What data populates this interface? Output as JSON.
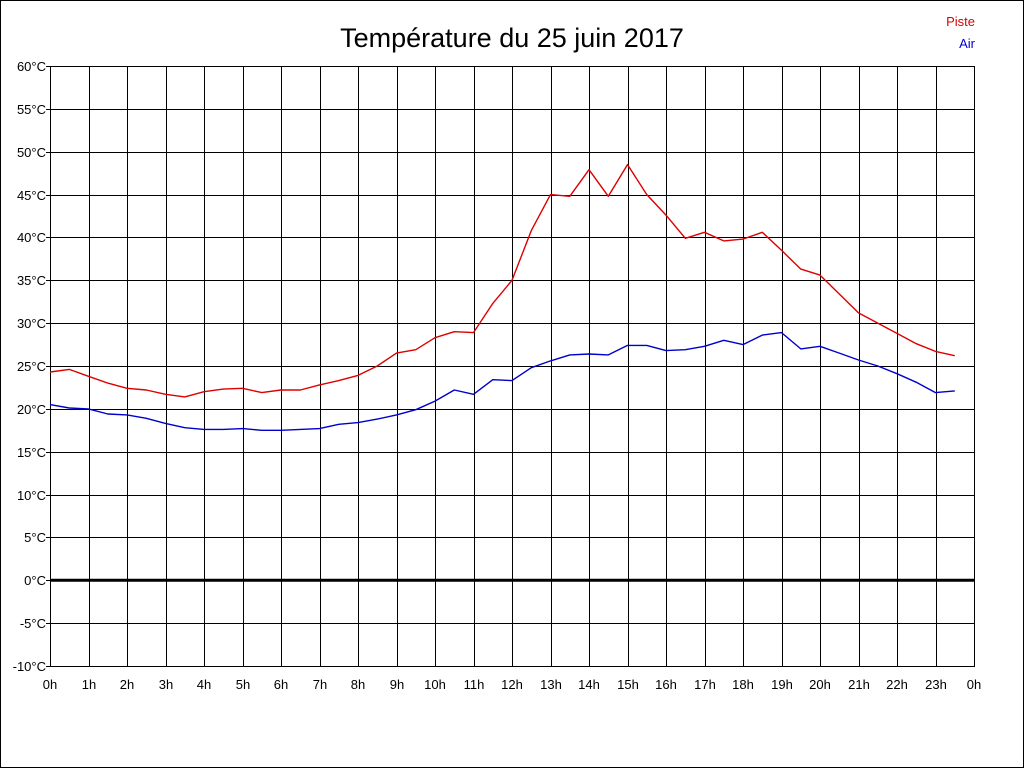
{
  "chart_data": {
    "type": "line",
    "title": "Température du 25 juin 2017",
    "xlabel": "",
    "ylabel": "",
    "grid": true,
    "legend_position": "top-right",
    "x_ticks": [
      "0h",
      "1h",
      "2h",
      "3h",
      "4h",
      "5h",
      "6h",
      "7h",
      "8h",
      "9h",
      "10h",
      "11h",
      "12h",
      "13h",
      "14h",
      "15h",
      "16h",
      "17h",
      "18h",
      "19h",
      "20h",
      "21h",
      "22h",
      "23h",
      "0h"
    ],
    "xlim": [
      0,
      24
    ],
    "y_ticks": [
      "-10°C",
      "-5°C",
      "0°C",
      "5°C",
      "10°C",
      "15°C",
      "20°C",
      "25°C",
      "30°C",
      "35°C",
      "40°C",
      "45°C",
      "50°C",
      "55°C",
      "60°C"
    ],
    "ylim": [
      -10,
      60
    ],
    "zero_line": 0,
    "x": [
      0,
      0.5,
      1,
      1.5,
      2,
      2.5,
      3,
      3.5,
      4,
      4.5,
      5,
      5.5,
      6,
      6.5,
      7,
      7.5,
      8,
      8.5,
      9,
      9.5,
      10,
      10.5,
      11,
      11.5,
      12,
      12.5,
      13,
      13.5,
      14,
      14.5,
      15,
      15.5,
      16,
      16.5,
      17,
      17.5,
      18,
      18.5,
      19,
      19.5,
      20,
      20.5,
      21,
      21.5,
      22,
      22.5,
      23,
      23.5
    ],
    "series": [
      {
        "name": "Piste",
        "color": "#dd0000",
        "values": [
          24.3,
          24.6,
          23.8,
          23.0,
          22.4,
          22.2,
          21.7,
          21.4,
          22.0,
          22.3,
          22.4,
          21.9,
          22.2,
          22.2,
          22.8,
          23.3,
          23.9,
          25.0,
          26.5,
          26.9,
          28.3,
          29.0,
          28.9,
          32.3,
          35.0,
          40.8,
          45.0,
          44.8,
          47.9,
          44.8,
          48.5,
          45.0,
          42.6,
          39.9,
          40.6,
          39.6,
          39.8,
          40.6,
          38.5,
          36.3,
          35.6,
          33.4,
          31.2,
          30.0,
          28.8,
          27.6,
          26.7,
          26.2
        ]
      },
      {
        "name": "Air",
        "color": "#0000cc",
        "values": [
          20.5,
          20.1,
          20.0,
          19.4,
          19.3,
          18.9,
          18.3,
          17.8,
          17.6,
          17.6,
          17.7,
          17.5,
          17.5,
          17.6,
          17.7,
          18.2,
          18.4,
          18.8,
          19.3,
          19.9,
          20.9,
          22.2,
          21.7,
          23.4,
          23.3,
          24.8,
          25.6,
          26.3,
          26.4,
          26.3,
          27.4,
          27.4,
          26.8,
          26.9,
          27.3,
          28.0,
          27.5,
          28.6,
          28.9,
          27.0,
          27.3,
          26.5,
          25.7,
          25.0,
          24.1,
          23.1,
          21.9,
          22.1
        ]
      }
    ]
  }
}
